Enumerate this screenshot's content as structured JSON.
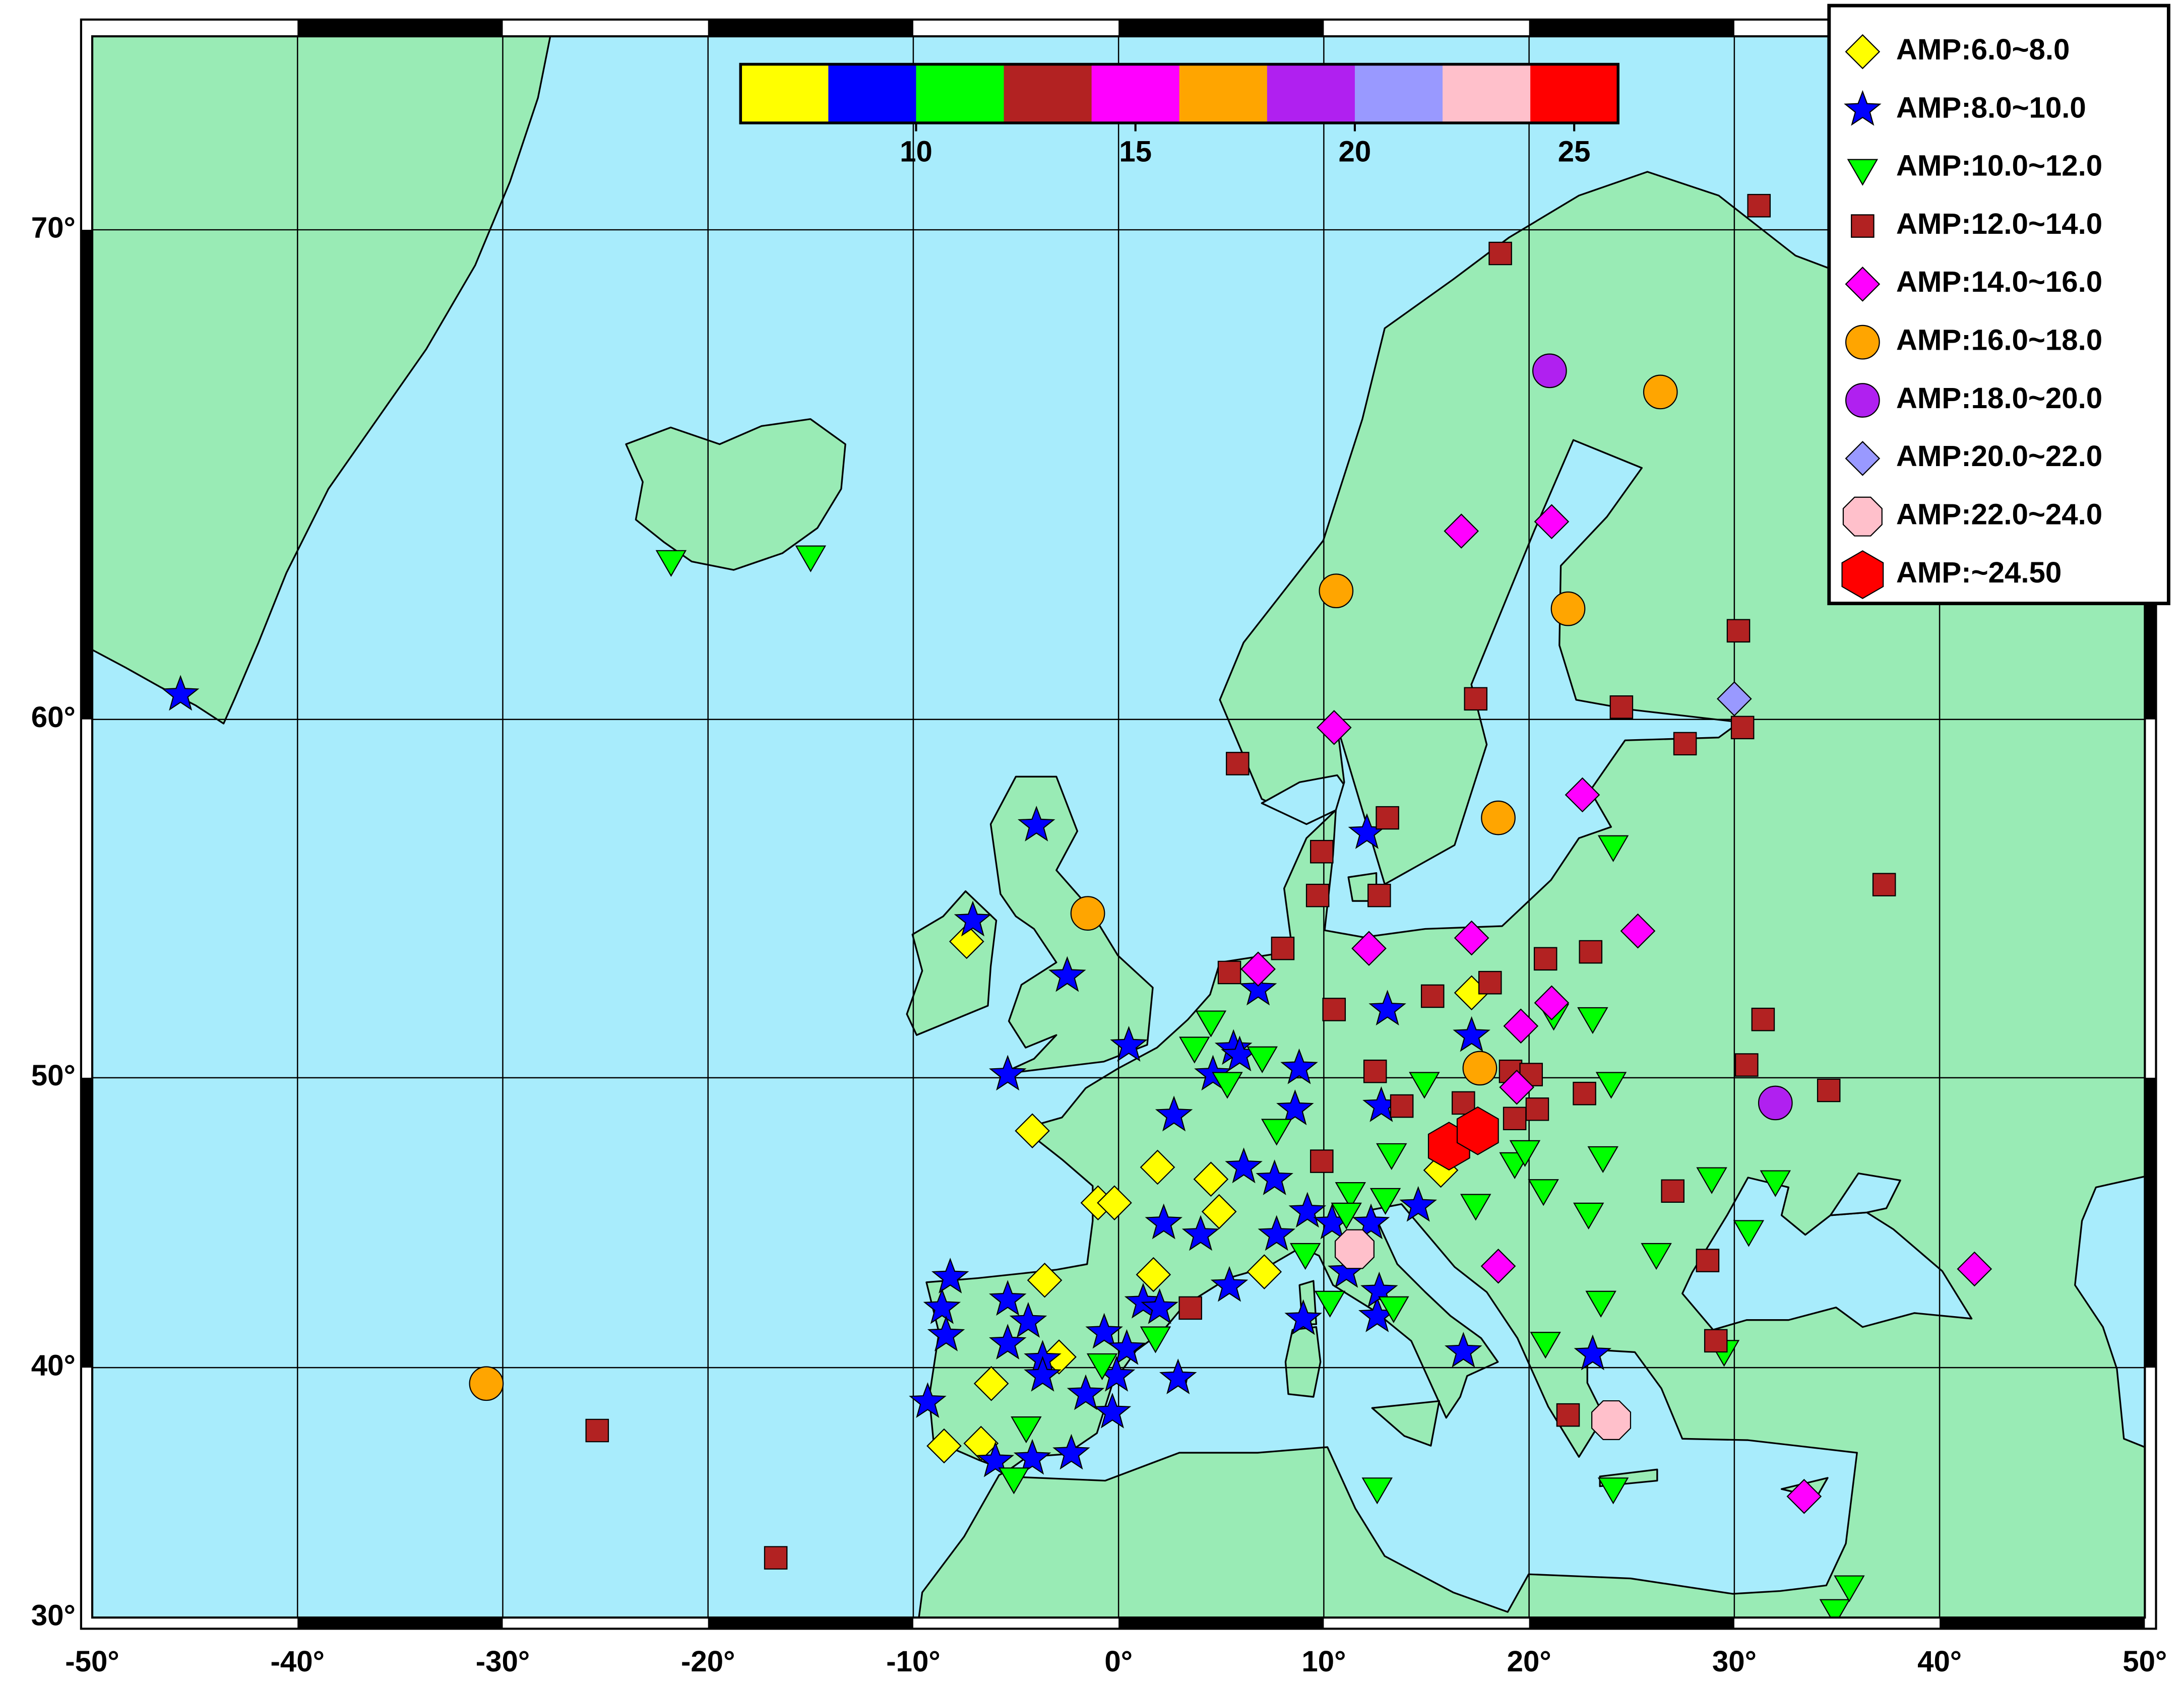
{
  "chart_data": {
    "type": "scatter",
    "projection": "mercator",
    "grid": true,
    "legend": "upper right",
    "xlim": [
      -50,
      50
    ],
    "ylim": [
      30,
      73
    ],
    "xticks": [
      {
        "value": -50,
        "label": "-50°"
      },
      {
        "value": -40,
        "label": "-40°"
      },
      {
        "value": -30,
        "label": "-30°"
      },
      {
        "value": -20,
        "label": "-20°"
      },
      {
        "value": -10,
        "label": "-10°"
      },
      {
        "value": 0,
        "label": "0°"
      },
      {
        "value": 10,
        "label": "10°"
      },
      {
        "value": 20,
        "label": "20°"
      },
      {
        "value": 30,
        "label": "30°"
      },
      {
        "value": 40,
        "label": "40°"
      },
      {
        "value": 50,
        "label": "50°"
      }
    ],
    "yticks": [
      {
        "value": 30,
        "label": "30°"
      },
      {
        "value": 40,
        "label": "40°"
      },
      {
        "value": 50,
        "label": "50°"
      },
      {
        "value": 60,
        "label": "60°"
      },
      {
        "value": 70,
        "label": "70°"
      }
    ],
    "colorbar": {
      "lim": [
        6,
        26
      ],
      "ticks": [
        10,
        15,
        20,
        25
      ]
    },
    "series": [
      {
        "name": "AMP:6.0~8.0",
        "color": "#ffff00",
        "marker": "diamond",
        "x": [
          -7.4,
          -4.2,
          -1.0,
          -0.2,
          1.9,
          4.5,
          4.9,
          1.7,
          7.1,
          -3.6,
          -2.9,
          -6.2,
          -8.5,
          -6.7,
          17.2,
          15.7
        ],
        "y": [
          54.1,
          48.3,
          45.9,
          45.9,
          47.1,
          46.7,
          45.6,
          43.4,
          43.5,
          43.2,
          40.4,
          39.4,
          37.0,
          37.1,
          52.6,
          47.0
        ]
      },
      {
        "name": "AMP:8.0~10.0",
        "color": "#0000ff",
        "marker": "star",
        "x": [
          -45.7,
          -4.0,
          -7.1,
          -2.5,
          0.5,
          -5.4,
          2.7,
          5.6,
          4.6,
          5.9,
          6.8,
          8.8,
          8.6,
          6.1,
          7.6,
          2.2,
          4.0,
          7.7,
          5.4,
          9.2,
          12.1,
          13.1,
          17.2,
          12.8,
          14.6,
          10.4,
          12.3,
          11.1,
          9.0,
          12.6,
          12.7,
          16.8,
          23.1,
          -8.2,
          -8.6,
          -8.4,
          -5.4,
          -4.4,
          -5.4,
          -3.7,
          -3.7,
          -0.7,
          -1.6,
          0.4,
          -0.1,
          1.2,
          2.0,
          -9.3,
          -6.0,
          -4.2,
          -2.3,
          -0.3,
          2.9
        ],
        "y": [
          60.6,
          57.3,
          54.7,
          53.1,
          51.0,
          50.1,
          48.8,
          50.9,
          50.1,
          50.7,
          52.7,
          50.3,
          49.0,
          47.1,
          46.7,
          45.2,
          44.8,
          44.8,
          43.0,
          45.6,
          57.1,
          52.1,
          51.3,
          49.1,
          45.8,
          45.2,
          45.2,
          43.5,
          41.8,
          41.9,
          42.8,
          40.6,
          40.5,
          43.3,
          42.2,
          41.2,
          42.5,
          41.7,
          40.9,
          40.3,
          39.7,
          41.3,
          39.0,
          40.7,
          39.7,
          42.4,
          42.2,
          38.7,
          36.4,
          36.5,
          36.7,
          38.3,
          39.6
        ]
      },
      {
        "name": "AMP:10.0~12.0",
        "color": "#00ff00",
        "marker": "triangle-down",
        "x": [
          -21.8,
          -15.0,
          3.7,
          4.5,
          5.3,
          7.0,
          7.7,
          9.1,
          10.3,
          11.3,
          13.0,
          13.3,
          14.9,
          13.4,
          12.6,
          11.1,
          1.8,
          -0.8,
          -4.5,
          -5.1,
          17.4,
          19.3,
          19.8,
          21.2,
          23.1,
          24.0,
          23.6,
          20.7,
          22.9,
          23.5,
          20.8,
          24.1,
          26.2,
          28.9,
          32.0,
          30.7,
          29.5,
          24.1,
          34.9,
          35.6
        ],
        "y": [
          63.7,
          63.8,
          51.0,
          51.8,
          49.9,
          50.7,
          48.4,
          44.2,
          42.5,
          46.3,
          46.1,
          47.6,
          49.9,
          42.3,
          35.4,
          45.6,
          41.2,
          40.2,
          37.8,
          35.8,
          45.9,
          47.3,
          47.7,
          52.0,
          51.9,
          49.9,
          47.5,
          46.4,
          45.6,
          42.5,
          41.0,
          56.8,
          44.2,
          46.8,
          46.7,
          45.0,
          40.7,
          35.4,
          30.4,
          31.4
        ]
      },
      {
        "name": "AMP:12.0~14.0",
        "color": "#b22222",
        "marker": "square",
        "x": [
          31.2,
          18.6,
          30.2,
          17.4,
          5.8,
          24.5,
          27.6,
          30.4,
          13.1,
          9.9,
          9.7,
          12.7,
          8.0,
          5.4,
          10.5,
          15.3,
          18.1,
          20.8,
          23.0,
          12.5,
          9.9,
          13.8,
          16.8,
          19.1,
          20.1,
          20.4,
          19.3,
          22.7,
          31.4,
          30.6,
          34.6,
          37.3,
          27.0,
          28.7,
          29.1,
          21.9,
          3.5,
          -25.4,
          -16.7
        ],
        "y": [
          70.4,
          69.6,
          62.1,
          60.5,
          58.9,
          60.3,
          59.4,
          59.8,
          57.5,
          56.6,
          55.4,
          55.4,
          53.9,
          53.2,
          52.1,
          52.5,
          52.9,
          53.6,
          53.8,
          50.2,
          47.3,
          49.1,
          49.2,
          50.2,
          50.1,
          49.0,
          48.7,
          49.5,
          51.8,
          50.4,
          49.6,
          55.7,
          46.3,
          43.9,
          41.0,
          38.2,
          42.2,
          37.6,
          32.5
        ]
      },
      {
        "name": "AMP:14.0~16.0",
        "color": "#ff00ff",
        "marker": "diamond",
        "x": [
          16.7,
          21.1,
          10.5,
          22.6,
          25.3,
          12.2,
          17.2,
          6.8,
          21.1,
          19.6,
          19.4,
          18.5,
          41.7,
          33.4
        ],
        "y": [
          64.3,
          64.5,
          59.8,
          58.1,
          54.4,
          53.9,
          54.2,
          53.3,
          52.3,
          51.6,
          49.7,
          43.7,
          43.6,
          35.0
        ]
      },
      {
        "name": "AMP:16.0~18.0",
        "color": "#ffa500",
        "marker": "circle",
        "x": [
          26.4,
          10.6,
          21.9,
          18.5,
          -1.5,
          17.6,
          -30.8
        ],
        "y": [
          67.1,
          63.0,
          62.6,
          57.5,
          54.9,
          50.3,
          39.4
        ]
      },
      {
        "name": "AMP:18.0~20.0",
        "color": "#b020f0",
        "marker": "circle",
        "x": [
          21.0,
          32.0
        ],
        "y": [
          67.5,
          49.2
        ]
      },
      {
        "name": "AMP:20.0~22.0",
        "color": "#9999ff",
        "marker": "diamond",
        "x": [
          30.0
        ],
        "y": [
          60.5
        ]
      },
      {
        "name": "AMP:22.0~24.0",
        "color": "#ffc0cb",
        "marker": "octagon",
        "x": [
          11.5,
          24.0
        ],
        "y": [
          44.3,
          38.0
        ]
      },
      {
        "name": "AMP:~24.50",
        "color": "#ff0000",
        "marker": "hexagon",
        "x": [
          16.1,
          17.5
        ],
        "y": [
          47.8,
          48.3
        ]
      }
    ]
  }
}
